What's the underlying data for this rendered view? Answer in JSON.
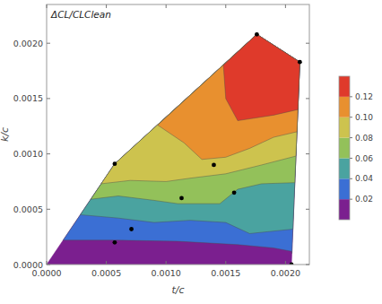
{
  "chart_data": {
    "type": "contour",
    "title": "ΔCL/CLClean",
    "x_label": "t/c",
    "y_label": "k/c",
    "xlim": [
      0,
      0.0022
    ],
    "ylim": [
      0,
      0.00235
    ],
    "xticks": [
      {
        "value": 0,
        "label": "0.0000"
      },
      {
        "value": 0.0005,
        "label": "0.0005"
      },
      {
        "value": 0.001,
        "label": "0.0010"
      },
      {
        "value": 0.0015,
        "label": "0.0015"
      },
      {
        "value": 0.002,
        "label": "0.0020"
      }
    ],
    "yticks": [
      {
        "value": 0,
        "label": "0.0000"
      },
      {
        "value": 0.0005,
        "label": "0.0005"
      },
      {
        "value": 0.001,
        "label": "0.0010"
      },
      {
        "value": 0.0015,
        "label": "0.0015"
      },
      {
        "value": 0.002,
        "label": "0.0020"
      }
    ],
    "domain": [
      [
        0,
        0
      ],
      [
        0.00205,
        0
      ],
      [
        0.00212,
        0.00183
      ],
      [
        0.00176,
        0.00208
      ],
      [
        0.00057,
        0.00091
      ]
    ],
    "contours": [
      {
        "level": 0.02,
        "region": [
          [
            0.000138,
            0.00022
          ],
          [
            0.0006,
            0.00022
          ],
          [
            0.0011,
            0.00021
          ],
          [
            0.0016,
            0.00018
          ],
          [
            0.0019,
            0.00015
          ],
          [
            0.00205,
            0.00012
          ],
          [
            0.002054,
            0.0001
          ],
          [
            0.00212,
            0.00183
          ],
          [
            0.00176,
            0.00208
          ],
          [
            0.00057,
            0.00091
          ]
        ]
      },
      {
        "level": 0.04,
        "region": [
          [
            0.000282,
            0.00045
          ],
          [
            0.0006,
            0.00042
          ],
          [
            0.0009,
            0.00038
          ],
          [
            0.0012,
            0.0004
          ],
          [
            0.0015,
            0.00038
          ],
          [
            0.0017,
            0.00028
          ],
          [
            0.002062,
            0.00032
          ],
          [
            0.00212,
            0.00183
          ],
          [
            0.00176,
            0.00208
          ],
          [
            0.00057,
            0.00091
          ]
        ]
      },
      {
        "level": 0.06,
        "region": [
          [
            0.00037,
            0.00059
          ],
          [
            0.0006,
            0.00062
          ],
          [
            0.0009,
            0.00058
          ],
          [
            0.0011,
            0.00055
          ],
          [
            0.00145,
            0.00055
          ],
          [
            0.0016,
            0.00068
          ],
          [
            0.0018,
            0.00073
          ],
          [
            0.002078,
            0.00074
          ],
          [
            0.00212,
            0.00183
          ],
          [
            0.00176,
            0.00208
          ],
          [
            0.00057,
            0.00091
          ]
        ]
      },
      {
        "level": 0.08,
        "region": [
          [
            0.000457,
            0.00073
          ],
          [
            0.0007,
            0.00076
          ],
          [
            0.001,
            0.00075
          ],
          [
            0.0012,
            0.00078
          ],
          [
            0.0015,
            0.00082
          ],
          [
            0.0018,
            0.0009
          ],
          [
            0.002087,
            0.00098
          ],
          [
            0.00212,
            0.00183
          ],
          [
            0.00176,
            0.00208
          ],
          [
            0.00057,
            0.00091
          ]
        ]
      },
      {
        "level": 0.1,
        "region": [
          [
            0.00093,
            0.00126
          ],
          [
            0.00115,
            0.0011
          ],
          [
            0.0013,
            0.00095
          ],
          [
            0.0015,
            0.00097
          ],
          [
            0.0017,
            0.00105
          ],
          [
            0.0019,
            0.00115
          ],
          [
            0.002096,
            0.0012
          ],
          [
            0.00212,
            0.00183
          ],
          [
            0.00176,
            0.00208
          ]
        ]
      },
      {
        "level": 0.12,
        "region": [
          [
            0.00148,
            0.0018
          ],
          [
            0.0015,
            0.0015
          ],
          [
            0.0016,
            0.0013
          ],
          [
            0.0019,
            0.00135
          ],
          [
            0.002104,
            0.0014
          ],
          [
            0.00212,
            0.00183
          ],
          [
            0.00176,
            0.00208
          ]
        ]
      }
    ],
    "points": {
      "x": [
        0.00057,
        0.00057,
        0.00071,
        0.00113,
        0.0014,
        0.00157,
        0.00176,
        0.00212,
        0.00205
      ],
      "y": [
        0.00091,
        0.0002,
        0.00032,
        0.0006,
        0.0009,
        0.00065,
        0.00208,
        0.00183,
        0
      ]
    },
    "colorbar": {
      "range": [
        0,
        0.14
      ],
      "ticks": [
        0.02,
        0.04,
        0.06,
        0.08,
        {
          "value": 0.1,
          "label": "0.10"
        },
        0.12
      ],
      "colors": [
        "#7b1f8f",
        "#3b6fd4",
        "#4aa3a0",
        "#93c15a",
        "#cdc34e",
        "#e8902f",
        "#df3a2b"
      ]
    }
  }
}
